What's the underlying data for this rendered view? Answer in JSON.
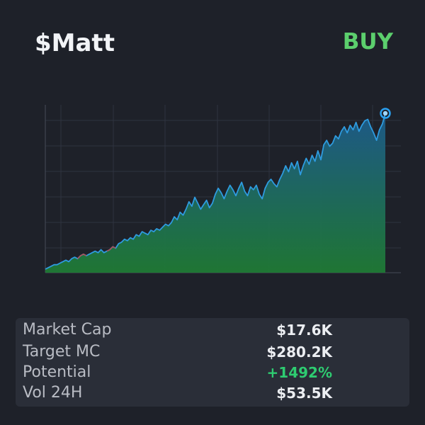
{
  "token": {
    "ticker": "$Matt",
    "signal": "BUY",
    "signal_color": "#5ccf6d"
  },
  "stats": [
    {
      "label": "Market Cap",
      "value": "$17.6K"
    },
    {
      "label": "Target MC",
      "value": "$280.2K"
    },
    {
      "label": "Potential",
      "value": "+1492%",
      "value_color": "#2ecc71"
    },
    {
      "label": "Vol 24H",
      "value": "$53.5K"
    }
  ],
  "chart_data": {
    "type": "area",
    "title": "",
    "xlabel": "",
    "ylabel": "",
    "grid": true,
    "line_color": "#2e9bdf",
    "fill_top_color": "#1d5b8c",
    "fill_bottom_color": "#1f7a34",
    "marker_color": "#2aa0f0",
    "down_color": "#d9372c",
    "values": [
      0.0,
      0.01,
      0.02,
      0.03,
      0.03,
      0.04,
      0.05,
      0.06,
      0.05,
      0.07,
      0.08,
      0.07,
      0.09,
      0.1,
      0.09,
      0.1,
      0.11,
      0.12,
      0.11,
      0.13,
      0.11,
      0.12,
      0.13,
      0.15,
      0.14,
      0.17,
      0.18,
      0.2,
      0.19,
      0.21,
      0.2,
      0.23,
      0.22,
      0.25,
      0.24,
      0.23,
      0.26,
      0.25,
      0.27,
      0.26,
      0.28,
      0.3,
      0.29,
      0.31,
      0.35,
      0.33,
      0.38,
      0.36,
      0.4,
      0.45,
      0.42,
      0.48,
      0.44,
      0.4,
      0.43,
      0.46,
      0.41,
      0.44,
      0.5,
      0.54,
      0.51,
      0.47,
      0.52,
      0.56,
      0.53,
      0.49,
      0.54,
      0.58,
      0.52,
      0.49,
      0.55,
      0.53,
      0.56,
      0.5,
      0.47,
      0.54,
      0.58,
      0.6,
      0.57,
      0.55,
      0.6,
      0.64,
      0.69,
      0.65,
      0.71,
      0.67,
      0.72,
      0.63,
      0.69,
      0.74,
      0.7,
      0.76,
      0.72,
      0.79,
      0.73,
      0.83,
      0.86,
      0.82,
      0.84,
      0.89,
      0.87,
      0.92,
      0.95,
      0.91,
      0.96,
      0.93,
      0.98,
      0.92,
      0.96,
      0.99,
      1.0,
      0.95,
      0.91,
      0.86,
      0.93,
      0.97,
      1.04
    ],
    "down_ranges": [
      [
        11,
        14
      ],
      [
        21,
        24
      ]
    ]
  }
}
